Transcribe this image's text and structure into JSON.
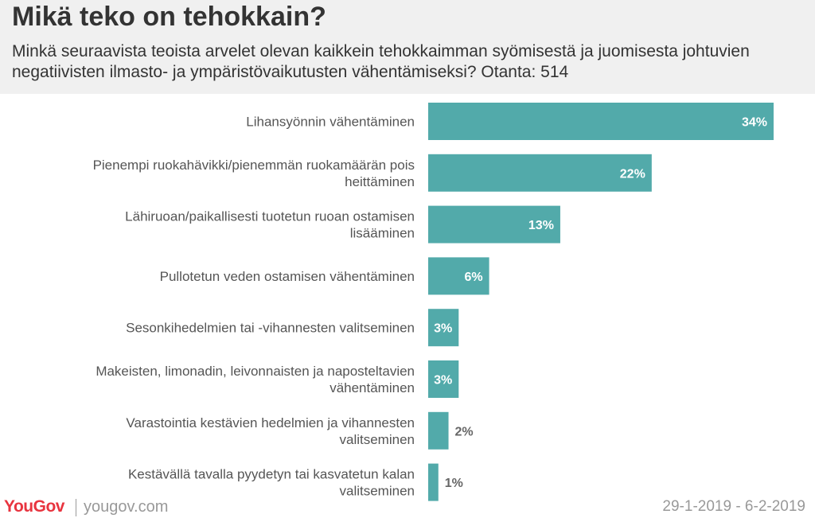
{
  "header": {
    "title": "Mikä teko on tehokkain?",
    "subtitle": "Minkä seuraavista teoista arvelet olevan kaikkein tehokkaimman syömisestä ja juomisesta johtuvien negatiivisten ilmasto- ja ympäristövaikutusten vähentämiseksi? Otanta: 514"
  },
  "footer": {
    "brand": "YouGov",
    "url": "yougov.com",
    "date_range": "29-1-2019 - 6-2-2019"
  },
  "colors": {
    "bar": "#52aaaa",
    "label_inside": "#ffffff",
    "label_outside": "#666666",
    "category_text": "#555555"
  },
  "chart_data": {
    "type": "bar",
    "orientation": "horizontal",
    "categories": [
      [
        "Lihansyönnin vähentäminen"
      ],
      [
        "Pienempi ruokahävikki/pienemmän ruokamäärän pois",
        "heittäminen"
      ],
      [
        "Lähiruoan/paikallisesti tuotetun ruoan ostamisen",
        "lisääminen"
      ],
      [
        "Pullotetun veden ostamisen vähentäminen"
      ],
      [
        "Sesonkihedelmien tai -vihannesten valitseminen"
      ],
      [
        "Makeisten, limonadin, leivonnaisten ja naposteltavien",
        "vähentäminen"
      ],
      [
        "Varastointia kestävien hedelmien ja vihannesten",
        "valitseminen"
      ],
      [
        "Kestävällä tavalla pyydetyn tai kasvatetun kalan",
        "valitseminen"
      ]
    ],
    "values": [
      34,
      22,
      13,
      6,
      3,
      3,
      2,
      1
    ],
    "value_labels": [
      "34%",
      "22%",
      "13%",
      "6%",
      "3%",
      "3%",
      "2%",
      "1%"
    ],
    "xlim": [
      0,
      34
    ],
    "grid": false,
    "legend": "none"
  }
}
